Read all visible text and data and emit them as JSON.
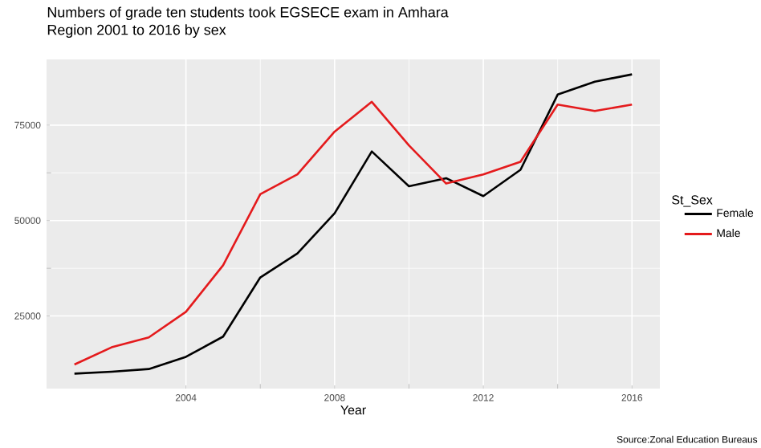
{
  "chart_data": {
    "type": "line",
    "title": "Numbers of grade ten students took EGSECE exam in Amhara\nRegion 2001 to 2016 by sex",
    "xlabel": "Year",
    "legend_title": "St_Sex",
    "annotations": [
      "Source:Zonal Education Bureaus"
    ],
    "x": [
      2001,
      2002,
      2003,
      2004,
      2005,
      2006,
      2007,
      2008,
      2009,
      2010,
      2011,
      2012,
      2013,
      2014,
      2015,
      2016
    ],
    "series": [
      {
        "name": "Female",
        "color": "#000000",
        "values": [
          9900,
          10400,
          11100,
          14300,
          19600,
          35100,
          41400,
          51900,
          68100,
          59000,
          61100,
          56400,
          63300,
          83000,
          86400,
          88300
        ]
      },
      {
        "name": "Male",
        "color": "#e41a1c",
        "values": [
          12300,
          16800,
          19400,
          26100,
          38300,
          56900,
          62100,
          73300,
          81100,
          69700,
          59700,
          62100,
          65400,
          80400,
          78700,
          80400
        ]
      }
    ],
    "xlim": [
      2000.25,
      2016.75
    ],
    "ylim": [
      5980,
      92220
    ],
    "xticks": [
      2004,
      2008,
      2012,
      2016
    ],
    "yticks": [
      25000,
      50000,
      75000
    ],
    "grid": true,
    "legend": "right",
    "marker": "none",
    "line_style": "solid"
  }
}
